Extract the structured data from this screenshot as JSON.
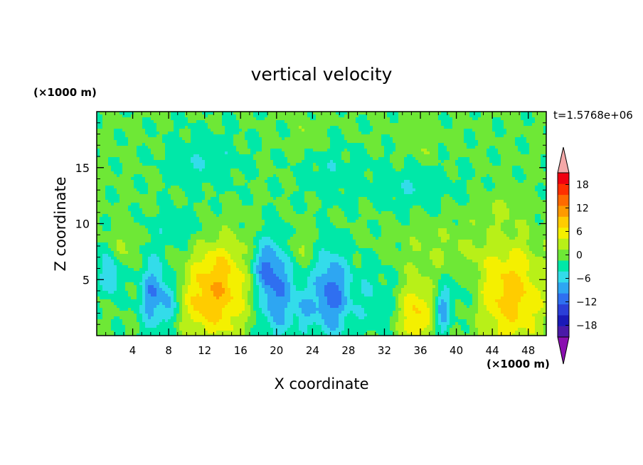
{
  "chart_data": {
    "type": "heatmap",
    "title": "vertical velocity",
    "xlabel": "X coordinate",
    "ylabel": "Z coordinate",
    "x_unit": "(×1000 m)",
    "y_unit": "(×1000 m)",
    "time_label": "t=1.5768e+06",
    "xlim": [
      0,
      50
    ],
    "ylim": [
      0,
      20
    ],
    "xticks": [
      4,
      8,
      12,
      16,
      20,
      24,
      28,
      32,
      36,
      40,
      44,
      48
    ],
    "xtick_labels": [
      "4",
      "8",
      "12",
      "16",
      "20",
      "24",
      "28",
      "32",
      "36",
      "40",
      "44",
      "48"
    ],
    "yticks": [
      5,
      10,
      15
    ],
    "ytick_labels": [
      "5",
      "10",
      "15"
    ],
    "colorbar": {
      "levels": [
        -21,
        -18,
        -15,
        -12,
        -9,
        -6,
        -3,
        0,
        3,
        6,
        9,
        12,
        15,
        18,
        21
      ],
      "tick_values": [
        -18,
        -12,
        -6,
        0,
        6,
        12,
        18
      ],
      "tick_labels": [
        "−18",
        "−12",
        "−6",
        "0",
        "6",
        "12",
        "18"
      ],
      "colors": [
        "#4a1aa8",
        "#1a1ab8",
        "#2b3fd8",
        "#2f6ff0",
        "#2ea6f2",
        "#33dcea",
        "#00e8a8",
        "#6ee836",
        "#b8f018",
        "#f4f000",
        "#ffcc00",
        "#ff9a00",
        "#ff6a00",
        "#ff3000",
        "#f00010"
      ],
      "under_color": "#8a0fb0",
      "over_color": "#f4a8a8",
      "extend": "both"
    },
    "background_value": 0.5,
    "features": [
      {
        "x": 13.5,
        "z": 4.2,
        "amp": 11,
        "sx": 2.3,
        "sz": 3.3
      },
      {
        "x": 46,
        "z": 3.6,
        "amp": 10,
        "sx": 2.8,
        "sz": 3.3
      },
      {
        "x": 35.5,
        "z": 2.0,
        "amp": 9,
        "sx": 1.3,
        "sz": 2.0
      },
      {
        "x": 11,
        "z": 2.5,
        "amp": 3,
        "sx": 1.0,
        "sz": 2.0
      },
      {
        "x": 26,
        "z": 3.8,
        "amp": -11,
        "sx": 1.4,
        "sz": 2.6
      },
      {
        "x": 20,
        "z": 4.2,
        "amp": -10,
        "sx": 1.4,
        "sz": 3.0
      },
      {
        "x": 18.5,
        "z": 6.2,
        "amp": -6,
        "sx": 0.9,
        "sz": 1.4
      },
      {
        "x": 6.2,
        "z": 3.8,
        "amp": -9,
        "sx": 1.0,
        "sz": 2.2
      },
      {
        "x": 8.0,
        "z": 3.0,
        "amp": -6,
        "sx": 0.6,
        "sz": 1.4
      },
      {
        "x": 1.5,
        "z": 5.5,
        "amp": -7,
        "sx": 0.8,
        "sz": 1.4
      },
      {
        "x": 38.5,
        "z": 2.3,
        "amp": -8,
        "sx": 0.6,
        "sz": 1.6
      },
      {
        "x": 23,
        "z": 2.5,
        "amp": -5,
        "sx": 0.8,
        "sz": 1.4
      },
      {
        "x": 41,
        "z": 4.0,
        "amp": -3,
        "sx": 1.4,
        "sz": 2.2
      },
      {
        "x": 30.5,
        "z": 3.5,
        "amp": -3,
        "sx": 2.0,
        "sz": 2.2
      },
      {
        "x": 3.0,
        "z": 8.0,
        "amp": 3,
        "sx": 1.0,
        "sz": 1.5
      },
      {
        "x": 22.5,
        "z": 8.0,
        "amp": 3,
        "sx": 1.2,
        "sz": 1.4
      },
      {
        "x": 39,
        "z": 7.5,
        "amp": 2.5,
        "sx": 4.0,
        "sz": 1.8
      },
      {
        "x": 23.5,
        "z": 17.8,
        "amp": 2.5,
        "sx": 1.0,
        "sz": 1.2
      },
      {
        "x": 36,
        "z": 17.0,
        "amp": 2.0,
        "sx": 1.5,
        "sz": 1.6
      },
      {
        "x": 45,
        "z": 11.5,
        "amp": 2.0,
        "sx": 1.5,
        "sz": 1.2
      },
      {
        "x": 12,
        "z": 15.5,
        "amp": -3,
        "sx": 3.0,
        "sz": 2.0
      },
      {
        "x": 35,
        "z": 13.5,
        "amp": -3,
        "sx": 3.5,
        "sz": 1.5
      },
      {
        "x": 26,
        "z": 14.5,
        "amp": -2.5,
        "sx": 2.5,
        "sz": 1.8
      },
      {
        "x": 10,
        "z": 9.5,
        "amp": -3,
        "sx": 3.0,
        "sz": 1.2
      }
    ]
  }
}
